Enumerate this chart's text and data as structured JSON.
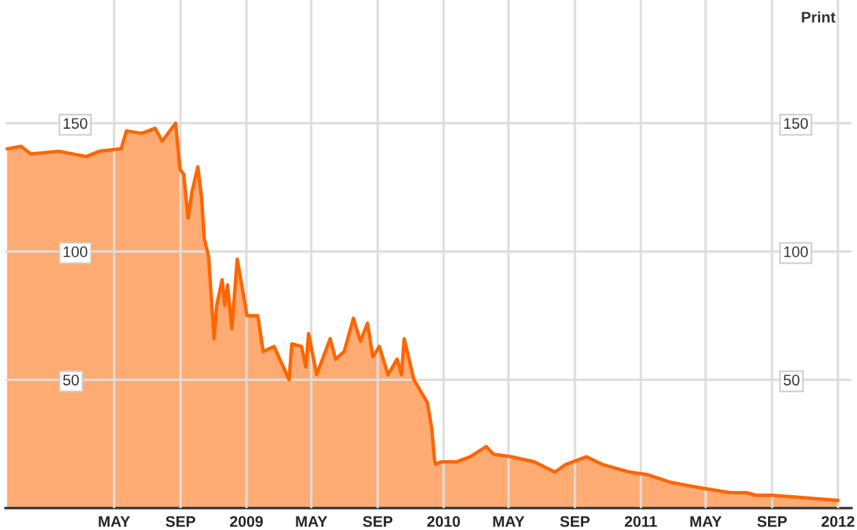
{
  "chart_data": {
    "type": "area",
    "x": [
      "2007-10-16",
      "2007-11-11",
      "2007-11-29",
      "2008-01-21",
      "2008-03-11",
      "2008-04-03",
      "2008-05-14",
      "2008-05-24",
      "2008-06-21",
      "2008-07-16",
      "2008-07-29",
      "2008-08-23",
      "2008-08-31",
      "2008-09-07",
      "2008-09-15",
      "2008-09-22",
      "2008-10-03",
      "2008-10-10",
      "2008-10-15",
      "2008-10-23",
      "2008-11-02",
      "2008-11-07",
      "2008-11-17",
      "2008-11-22",
      "2008-11-27",
      "2008-12-05",
      "2008-12-15",
      "2009-01-02",
      "2009-01-22",
      "2009-02-01",
      "2009-02-21",
      "2009-03-21",
      "2009-03-26",
      "2009-04-13",
      "2009-04-21",
      "2009-04-26",
      "2009-05-11",
      "2009-06-05",
      "2009-06-15",
      "2009-07-01",
      "2009-07-18",
      "2009-07-31",
      "2009-08-13",
      "2009-08-23",
      "2009-09-04",
      "2009-09-20",
      "2009-10-07",
      "2009-10-15",
      "2009-10-20",
      "2009-11-07",
      "2009-12-02",
      "2009-12-10",
      "2009-12-15",
      "2009-12-17",
      "2009-12-27",
      "2010-01-24",
      "2010-02-19",
      "2010-03-21",
      "2010-04-03",
      "2010-05-06",
      "2010-06-18",
      "2010-07-26",
      "2010-08-15",
      "2010-09-22",
      "2010-10-22",
      "2010-12-12",
      "2011-01-14",
      "2011-02-26",
      "2011-04-18",
      "2011-06-15",
      "2011-07-15",
      "2011-08-02",
      "2011-09-01",
      "2011-11-01",
      "2012-01-01"
    ],
    "series": [
      {
        "color": "#ff6600",
        "values": [
          140,
          141,
          138,
          139,
          137,
          139,
          140,
          147,
          146,
          148,
          143,
          150,
          132,
          130,
          113,
          123,
          133,
          121,
          105,
          98,
          66,
          79,
          89,
          79,
          87,
          70,
          97,
          75,
          75,
          61,
          63,
          50,
          64,
          63,
          55,
          68,
          52,
          66,
          58,
          61,
          74,
          65,
          72,
          59,
          63,
          52,
          58,
          52,
          66,
          50,
          41,
          31,
          19,
          17,
          18,
          18,
          20,
          24,
          21,
          20,
          18,
          14,
          17,
          20,
          17,
          14,
          13,
          10,
          8,
          6,
          6,
          5,
          5,
          4,
          3
        ]
      }
    ],
    "xlim": [
      "2007-10-13",
      "2012-01-26"
    ],
    "xticks": [
      {
        "value": "2008-05-01",
        "label": "MAY"
      },
      {
        "value": "2008-09-01",
        "label": "SEP"
      },
      {
        "value": "2009-01-01",
        "label": "2009"
      },
      {
        "value": "2009-05-01",
        "label": "MAY"
      },
      {
        "value": "2009-09-01",
        "label": "SEP"
      },
      {
        "value": "2010-01-01",
        "label": "2010"
      },
      {
        "value": "2010-05-01",
        "label": "MAY"
      },
      {
        "value": "2010-09-01",
        "label": "SEP"
      },
      {
        "value": "2011-01-01",
        "label": "2011"
      },
      {
        "value": "2011-05-01",
        "label": "MAY"
      },
      {
        "value": "2011-09-01",
        "label": "SEP"
      },
      {
        "value": "2012-01-01",
        "label": "2012"
      }
    ],
    "ylim": [
      0,
      198
    ],
    "yticks": [
      50,
      100,
      150
    ],
    "y2lim": [
      0,
      198
    ],
    "y2ticks": [
      50,
      100,
      150
    ],
    "grid": true,
    "annotations": [
      "Print"
    ]
  }
}
